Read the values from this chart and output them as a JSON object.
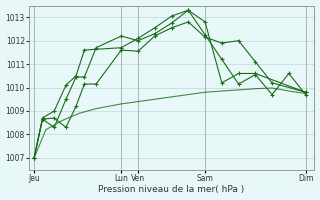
{
  "background_color": "#e8f8f8",
  "grid_color": "#c0dede",
  "line_color": "#1a6b1a",
  "xlabel": "Pression niveau de la mer( hPa )",
  "ylim": [
    1006.5,
    1013.5
  ],
  "yticks": [
    1007,
    1008,
    1009,
    1010,
    1011,
    1012,
    1013
  ],
  "xlim": [
    0,
    17
  ],
  "xtick_positions": [
    0.3,
    5.5,
    6.5,
    10.5,
    16.5
  ],
  "xtick_labels": [
    "Jeu",
    "Lun",
    "Ven",
    "Sam",
    "Dim"
  ],
  "vline_positions": [
    0.3,
    5.5,
    6.5,
    10.5,
    16.5
  ],
  "line1_x": [
    0.3,
    0.8,
    1.5,
    2.2,
    2.8,
    3.3,
    4.0,
    5.5,
    6.5,
    7.5,
    8.5,
    9.5,
    10.5,
    11.5,
    12.5,
    13.5,
    14.5,
    16.5
  ],
  "line1_y": [
    1007.0,
    1008.65,
    1008.7,
    1008.3,
    1009.2,
    1010.15,
    1010.15,
    1011.6,
    1011.55,
    1012.2,
    1012.55,
    1012.8,
    1012.15,
    1011.9,
    1012.0,
    1011.1,
    1010.2,
    1009.8
  ],
  "line2_x": [
    0.3,
    0.8,
    1.5,
    2.2,
    2.8,
    3.3,
    4.0,
    5.5,
    6.5,
    7.5,
    8.5,
    9.5,
    10.5,
    11.5,
    12.5,
    13.5,
    16.5
  ],
  "line2_y": [
    1007.0,
    1008.65,
    1008.3,
    1009.5,
    1010.45,
    1010.45,
    1011.7,
    1012.2,
    1012.0,
    1012.3,
    1012.75,
    1013.3,
    1012.8,
    1010.2,
    1010.6,
    1010.6,
    1009.8
  ],
  "line3_x": [
    0.3,
    1.0,
    2.0,
    3.0,
    4.0,
    5.5,
    6.5,
    7.5,
    8.5,
    9.5,
    10.5,
    11.5,
    12.5,
    13.5,
    14.5,
    15.5,
    16.5
  ],
  "line3_y": [
    1007.0,
    1008.2,
    1008.6,
    1008.9,
    1009.1,
    1009.3,
    1009.4,
    1009.5,
    1009.6,
    1009.7,
    1009.8,
    1009.85,
    1009.9,
    1009.95,
    1009.98,
    1009.85,
    1009.75
  ],
  "line4_x": [
    0.3,
    0.8,
    1.5,
    2.2,
    2.8,
    3.3,
    5.5,
    6.5,
    7.5,
    8.5,
    9.5,
    10.5,
    11.5,
    12.5,
    13.5,
    14.5,
    15.5,
    16.5
  ],
  "line4_y": [
    1007.0,
    1008.7,
    1009.0,
    1010.1,
    1010.5,
    1011.6,
    1011.7,
    1012.1,
    1012.55,
    1013.05,
    1013.3,
    1012.25,
    1011.2,
    1010.15,
    1010.55,
    1009.7,
    1010.6,
    1009.7
  ]
}
